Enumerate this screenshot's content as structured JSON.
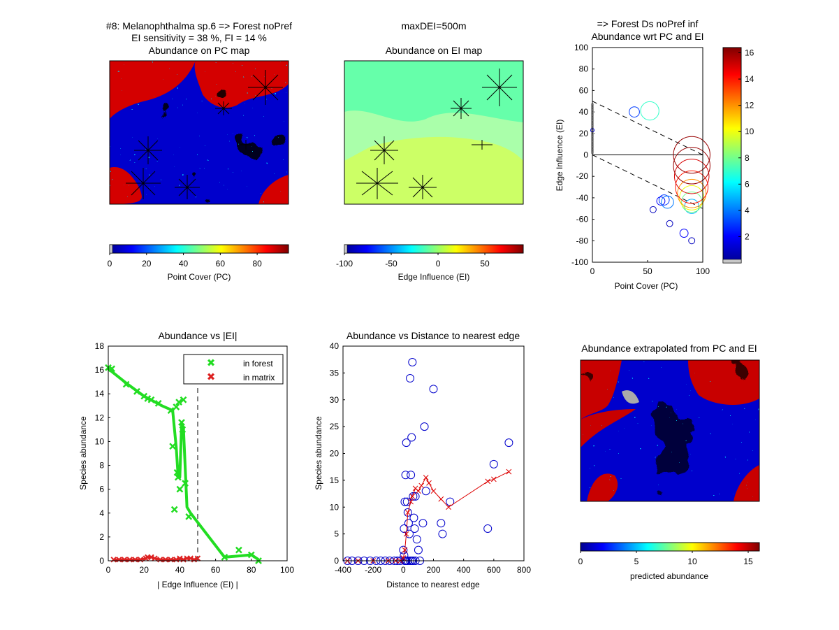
{
  "header": {
    "title_line1": "#8: Melanophthalma sp.6 => Forest noPref",
    "title_line2": "EI sensitivity = 38 %, FI = 14 %",
    "center_title": "maxDEI=500m",
    "right_title": "=> Forest Ds noPref inf"
  },
  "panels": {
    "pc_map": {
      "title": "Abundance on PC map"
    },
    "ei_map": {
      "title": "Abundance on EI map"
    },
    "pred_map": {
      "title": "Abundance extrapolated from PC and EI"
    }
  },
  "colorbars": {
    "pc": {
      "label": "Point Cover (PC)",
      "ticks": [
        "0",
        "20",
        "40",
        "60",
        "80"
      ],
      "min": 0,
      "max": 97
    },
    "ei": {
      "label": "Edge Influence (EI)",
      "ticks": [
        "-100",
        "-50",
        "0",
        "50"
      ],
      "min": -100,
      "max": 91
    },
    "pred": {
      "label": "predicted abundance",
      "ticks": [
        "0",
        "5",
        "10",
        "15"
      ],
      "min": 0,
      "max": 16
    },
    "vertical": {
      "ticks": [
        "2",
        "4",
        "6",
        "8",
        "10",
        "12",
        "14",
        "16"
      ],
      "min": 0,
      "max": 16.4
    }
  },
  "colors": {
    "forest_green": "#22dd22",
    "matrix_red": "#dd2222",
    "circle_blue": "#0000cc"
  },
  "chart_data": [
    {
      "type": "scatter",
      "title": "Abundance wrt PC and EI",
      "xlabel": "Point Cover (PC)",
      "ylabel": "Edge Influence (EI)",
      "xlim": [
        0,
        100
      ],
      "ylim": [
        -100,
        100
      ],
      "xticks": [
        0,
        50,
        100
      ],
      "yticks": [
        -100,
        -80,
        -60,
        -40,
        -20,
        0,
        20,
        40,
        60,
        80,
        100
      ],
      "points": [
        {
          "x": 38,
          "y": 40,
          "abundance": 3
        },
        {
          "x": 52,
          "y": 41,
          "abundance": 7
        },
        {
          "x": 55,
          "y": -51,
          "abundance": 1
        },
        {
          "x": 62,
          "y": -43,
          "abundance": 2
        },
        {
          "x": 65,
          "y": -42,
          "abundance": 3
        },
        {
          "x": 68,
          "y": -44,
          "abundance": 4
        },
        {
          "x": 70,
          "y": -64,
          "abundance": 1
        },
        {
          "x": 83,
          "y": -73,
          "abundance": 2
        },
        {
          "x": 90,
          "y": -80,
          "abundance": 1
        },
        {
          "x": 90,
          "y": -48,
          "abundance": 5
        },
        {
          "x": 90,
          "y": -44,
          "abundance": 8
        },
        {
          "x": 90,
          "y": -40,
          "abundance": 10
        },
        {
          "x": 90,
          "y": -36,
          "abundance": 12
        },
        {
          "x": 90,
          "y": -30,
          "abundance": 14
        },
        {
          "x": 90,
          "y": -20,
          "abundance": 15
        },
        {
          "x": 90,
          "y": -10,
          "abundance": 16
        },
        {
          "x": 90,
          "y": 0,
          "abundance": 16
        }
      ]
    },
    {
      "type": "line",
      "title": "Abundance vs |EI|",
      "xlabel": "| Edge Influence (EI) |",
      "ylabel": "Species abundance",
      "xlim": [
        0,
        100
      ],
      "ylim": [
        0,
        18
      ],
      "xticks": [
        0,
        20,
        40,
        60,
        80,
        100
      ],
      "yticks": [
        0,
        2,
        4,
        6,
        8,
        10,
        12,
        14,
        16,
        18
      ],
      "threshold_x": 50,
      "legend": [
        "in forest",
        "in matrix"
      ],
      "series": [
        {
          "name": "in forest",
          "marker": "x",
          "x": [
            0,
            2,
            10,
            16,
            20,
            22,
            24,
            28,
            35,
            36,
            37,
            38,
            38.5,
            39,
            39.5,
            40,
            41,
            41.5,
            42,
            43,
            45,
            65,
            73,
            80,
            84
          ],
          "y": [
            16.2,
            16.1,
            14.8,
            14.2,
            13.8,
            13.6,
            13.5,
            13.2,
            12.6,
            9.6,
            4.3,
            12.9,
            7.4,
            7.0,
            13.3,
            6.0,
            11.6,
            11.0,
            13.5,
            6.5,
            3.7,
            0.3,
            0.9,
            0.5,
            0.0
          ],
          "trend_x": [
            0,
            10,
            20,
            30,
            36,
            38,
            39,
            40,
            41,
            42,
            44,
            46,
            65,
            73,
            80,
            84
          ],
          "trend_y": [
            16.1,
            14.9,
            13.8,
            13.0,
            12.6,
            9.5,
            7.2,
            7.0,
            11.5,
            11.2,
            4.5,
            4.0,
            0.3,
            0.4,
            0.5,
            0.1
          ]
        },
        {
          "name": "in matrix",
          "marker": "x",
          "x": [
            3,
            6,
            9,
            12,
            15,
            18,
            21,
            22,
            24,
            26,
            29,
            32,
            35,
            38,
            40,
            42,
            44,
            46,
            48,
            50
          ],
          "y": [
            0.1,
            0.1,
            0.1,
            0.1,
            0.1,
            0.1,
            0.2,
            0.3,
            0.3,
            0.2,
            0.1,
            0.1,
            0.1,
            0.1,
            0.2,
            0.1,
            0.2,
            0.2,
            0.1,
            0.2
          ]
        }
      ]
    },
    {
      "type": "scatter",
      "title": "Abundance vs Distance to nearest edge",
      "xlabel": "Distance to nearest edge",
      "ylabel": "Species abundance",
      "xlim": [
        -400,
        800
      ],
      "ylim": [
        0,
        40
      ],
      "xticks": [
        -400,
        -200,
        0,
        200,
        400,
        600,
        800
      ],
      "yticks": [
        0,
        5,
        10,
        15,
        20,
        25,
        30,
        35,
        40
      ],
      "series": [
        {
          "name": "observed",
          "marker": "o",
          "x": [
            -370,
            -340,
            -300,
            -260,
            -220,
            -180,
            -150,
            -120,
            -90,
            -60,
            -40,
            -20,
            0,
            5,
            10,
            15,
            20,
            25,
            30,
            35,
            40,
            45,
            50,
            55,
            60,
            65,
            70,
            75,
            80,
            90,
            100,
            110,
            130,
            140,
            150,
            200,
            250,
            260,
            310,
            560,
            600,
            700,
            5,
            10,
            15,
            20,
            30,
            45,
            55,
            65,
            80
          ],
          "y": [
            0,
            0,
            0,
            0,
            0,
            0,
            0,
            0,
            0,
            0,
            0,
            0,
            2,
            6,
            11,
            16,
            22,
            11,
            9,
            7,
            5,
            34,
            16,
            23,
            37,
            12,
            8,
            6,
            12,
            4,
            2,
            0,
            7,
            25,
            13,
            32,
            7,
            5,
            11,
            6,
            18,
            22,
            1,
            0,
            0,
            0,
            0,
            0,
            0,
            0,
            0
          ]
        },
        {
          "name": "trend",
          "marker": "x",
          "x": [
            -370,
            -300,
            -200,
            -100,
            -50,
            -20,
            0,
            10,
            20,
            30,
            50,
            60,
            80,
            100,
            120,
            150,
            170,
            200,
            250,
            300,
            560,
            600,
            700
          ],
          "y": [
            0,
            0,
            0,
            0,
            0,
            0,
            0.5,
            2,
            5,
            9,
            11,
            12,
            13.5,
            13,
            14,
            15.5,
            14.5,
            13,
            11.5,
            10,
            14.8,
            15.2,
            16.6
          ]
        }
      ]
    }
  ]
}
